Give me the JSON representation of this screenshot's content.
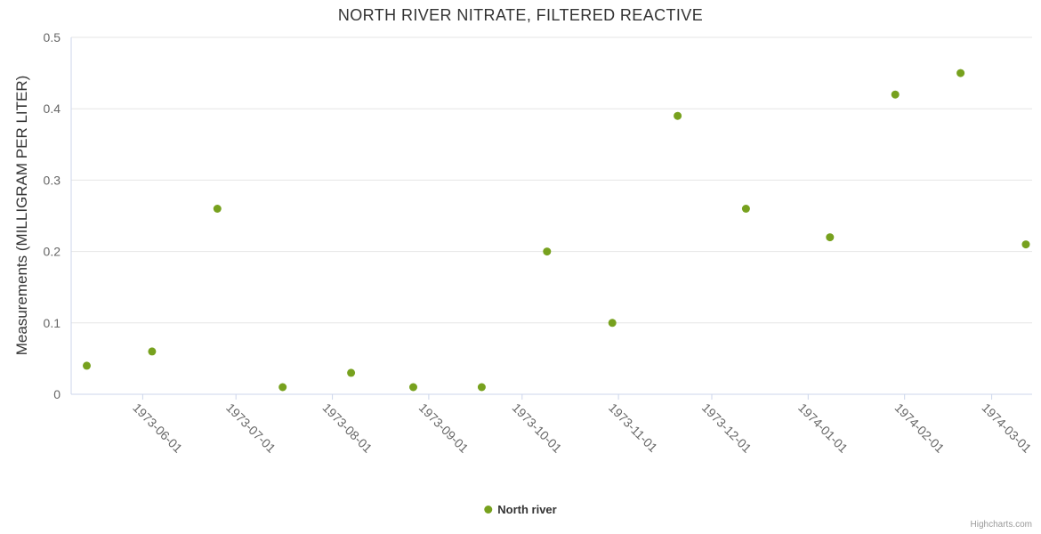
{
  "chart_data": {
    "type": "scatter",
    "title": "NORTH RIVER NITRATE, FILTERED REACTIVE",
    "ylabel": "Measurements (MILLIGRAM PER LITER)",
    "xlabel": "",
    "ylim": [
      0,
      0.5
    ],
    "y_ticks": [
      0,
      0.1,
      0.2,
      0.3,
      0.4,
      0.5
    ],
    "x_ticks": [
      "1973-06-01",
      "1973-07-01",
      "1973-08-01",
      "1973-09-01",
      "1973-10-01",
      "1973-11-01",
      "1973-12-01",
      "1974-01-01",
      "1974-02-01",
      "1974-03-01"
    ],
    "x_range": [
      "1973-05-09",
      "1974-03-14"
    ],
    "grid": "horizontal-only",
    "legend_position": "bottom-center",
    "series": [
      {
        "name": "North river",
        "color": "#77a11e",
        "points": [
          {
            "x": "1973-05-14",
            "y": 0.04
          },
          {
            "x": "1973-06-04",
            "y": 0.06
          },
          {
            "x": "1973-06-25",
            "y": 0.26
          },
          {
            "x": "1973-07-16",
            "y": 0.01
          },
          {
            "x": "1973-08-07",
            "y": 0.03
          },
          {
            "x": "1973-08-27",
            "y": 0.01
          },
          {
            "x": "1973-09-18",
            "y": 0.01
          },
          {
            "x": "1973-10-09",
            "y": 0.2
          },
          {
            "x": "1973-10-30",
            "y": 0.1
          },
          {
            "x": "1973-11-20",
            "y": 0.39
          },
          {
            "x": "1973-12-12",
            "y": 0.26
          },
          {
            "x": "1974-01-08",
            "y": 0.22
          },
          {
            "x": "1974-01-29",
            "y": 0.42
          },
          {
            "x": "1974-02-19",
            "y": 0.45
          },
          {
            "x": "1974-03-12",
            "y": 0.21
          }
        ]
      }
    ],
    "colors": {
      "grid": "#e6e6e6",
      "axis_line": "#ccd6eb",
      "tick_label": "#666666",
      "title": "#333333"
    }
  },
  "credits": {
    "label": "Highcharts.com"
  }
}
